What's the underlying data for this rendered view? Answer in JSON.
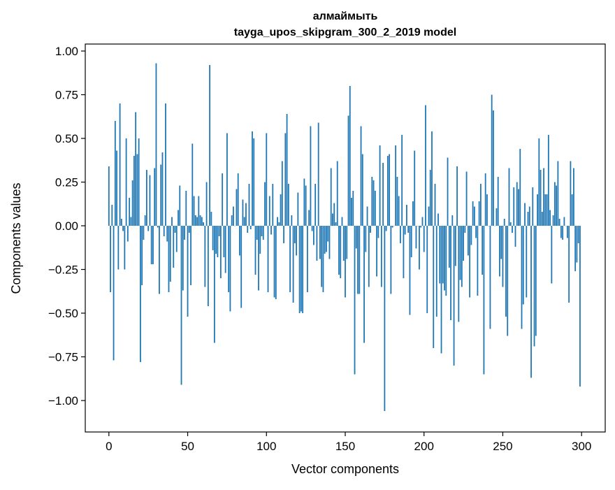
{
  "chart_data": {
    "type": "bar",
    "title": [
      "алмаймыть",
      "tayga_upos_skipgram_300_2_2019 model"
    ],
    "xlabel": "Vector components",
    "ylabel": "Components values",
    "xlim": [
      -15,
      315
    ],
    "ylim": [
      -1.18,
      1.04
    ],
    "xticks": [
      0,
      50,
      100,
      150,
      200,
      250,
      300
    ],
    "xtick_labels": [
      "0",
      "50",
      "100",
      "150",
      "200",
      "250",
      "300"
    ],
    "yticks": [
      1.0,
      0.75,
      0.5,
      0.25,
      0.0,
      -0.25,
      -0.5,
      -0.75,
      -1.0
    ],
    "ytick_labels": [
      "1.00",
      "0.75",
      "0.50",
      "0.25",
      "0.00",
      "−0.25",
      "−0.50",
      "−0.75",
      "−1.00"
    ],
    "grid": false,
    "bar_color": "#1f77b4",
    "values": [
      0.34,
      -0.38,
      0.12,
      -0.77,
      0.6,
      0.43,
      -0.25,
      0.7,
      0.04,
      -0.03,
      -0.25,
      0.5,
      -0.09,
      0.16,
      0.05,
      0.26,
      0.4,
      0.65,
      0.41,
      0.5,
      -0.78,
      -0.34,
      -0.08,
      0.06,
      0.32,
      -0.03,
      0.29,
      -0.22,
      -0.22,
      0.33,
      0.93,
      -0.01,
      -0.39,
      0.35,
      0.42,
      -0.06,
      0.7,
      -0.09,
      -0.38,
      -0.32,
      0.05,
      -0.24,
      -0.04,
      -0.15,
      0.09,
      0.23,
      -0.91,
      -0.37,
      -0.08,
      0.2,
      -0.52,
      -0.04,
      -0.34,
      0.47,
      0.17,
      0.06,
      0.05,
      0.17,
      0.06,
      0.05,
      0.02,
      -0.35,
      0.25,
      -0.46,
      0.92,
      0.08,
      -0.14,
      -0.67,
      -0.16,
      -0.18,
      -0.06,
      -0.3,
      0.3,
      -0.18,
      -0.27,
      0.53,
      -0.38,
      -0.49,
      0.06,
      0.11,
      0.0,
      0.21,
      0.3,
      -0.17,
      -0.47,
      0.15,
      0.05,
      0.13,
      -0.04,
      0.24,
      -0.02,
      0.54,
      0.5,
      -0.28,
      -0.08,
      -0.37,
      -0.16,
      -0.06,
      -0.08,
      0.25,
      0.53,
      -0.38,
      0.17,
      -0.05,
      0.24,
      -0.41,
      -0.42,
      0.05,
      0.02,
      0.18,
      0.37,
      -0.1,
      0.53,
      0.64,
      0.24,
      -0.38,
      0.06,
      -0.44,
      -0.1,
      -0.17,
      0.19,
      -0.5,
      -0.49,
      -0.5,
      0.27,
      0.23,
      -0.38,
      0.09,
      0.57,
      -0.03,
      -0.11,
      0.24,
      -0.2,
      0.59,
      -0.19,
      -0.35,
      -0.38,
      -0.16,
      -0.15,
      -0.09,
      -0.19,
      0.33,
      0.07,
      0.13,
      0.02,
      0.37,
      -0.28,
      -0.3,
      0.05,
      -0.2,
      -0.41,
      -0.19,
      0.63,
      0.8,
      0.16,
      0.2,
      -0.85,
      -0.13,
      -0.39,
      -0.39,
      0.57,
      0.41,
      -0.67,
      -0.15,
      0.11,
      -0.35,
      -0.04,
      0.28,
      0.26,
      0.2,
      -0.29,
      -0.07,
      0.46,
      -0.35,
      0.36,
      -1.06,
      -0.03,
      0.4,
      0.41,
      -0.39,
      -0.01,
      0.0,
      0.46,
      0.28,
      0.17,
      -0.1,
      0.52,
      -0.3,
      -0.05,
      0.12,
      -0.04,
      -0.51,
      -0.18,
      0.14,
      0.43,
      -0.13,
      0.0,
      -0.25,
      -0.01,
      0.05,
      -0.15,
      0.69,
      -0.5,
      0.11,
      0.32,
      0.54,
      -0.7,
      0.24,
      -0.52,
      0.07,
      -0.33,
      -0.73,
      -0.33,
      -0.37,
      -0.4,
      0.39,
      -0.24,
      -0.54,
      0.06,
      -0.8,
      -0.23,
      0.34,
      -0.55,
      -0.31,
      -0.35,
      -0.2,
      -0.04,
      0.31,
      -0.17,
      -0.41,
      -0.11,
      0.14,
      0.11,
      -0.07,
      -0.4,
      0.14,
      0.24,
      -0.28,
      -0.85,
      0.3,
      0.18,
      0.0,
      -0.59,
      0.75,
      0.66,
      0.0,
      0.1,
      0.28,
      -0.29,
      -0.19,
      -0.35,
      0.04,
      -0.52,
      -0.63,
      0.33,
      0.02,
      -0.04,
      0.22,
      -0.12,
      0.25,
      0.21,
      0.44,
      -0.59,
      -0.45,
      0.13,
      -0.41,
      0.08,
      0.11,
      -0.87,
      0.22,
      -0.69,
      -0.63,
      0.18,
      0.5,
      0.32,
      0.08,
      0.33,
      0.18,
      0.18,
      0.52,
      0.09,
      -0.33,
      0.06,
      0.25,
      0.23,
      0.37,
      0.04,
      -0.07,
      -0.08,
      0.05,
      0.0,
      -0.07,
      -0.44,
      0.37,
      0.18,
      0.33,
      -0.26,
      -0.21,
      -0.1,
      -0.92
    ]
  }
}
